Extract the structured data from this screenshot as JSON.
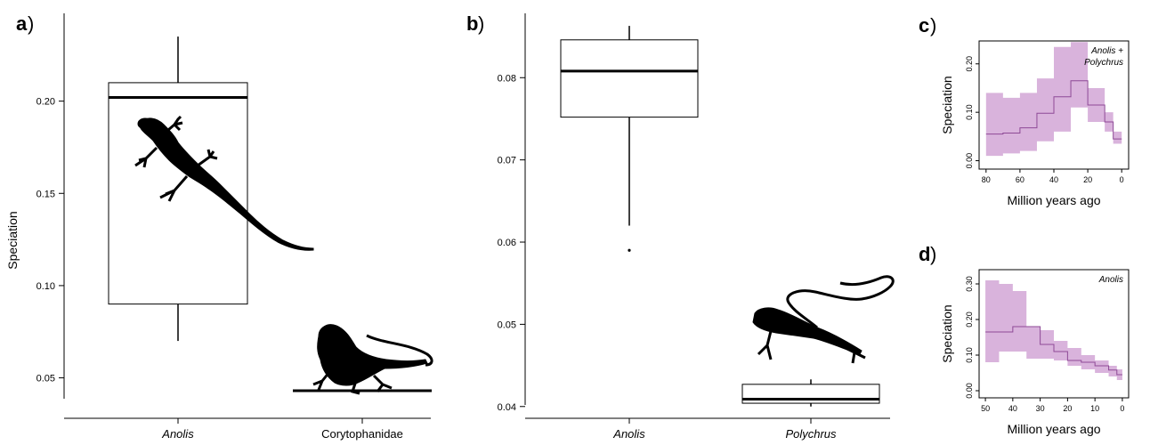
{
  "chart_data": [
    {
      "panel": "a",
      "type": "box",
      "ylabel": "Speciation",
      "ylim": [
        0.03,
        0.25
      ],
      "yticks": [
        "0.05",
        "0.10",
        "0.15",
        "0.20"
      ],
      "categories": [
        "Anolis",
        "Corytophanidae"
      ],
      "italic_categories": [
        true,
        false
      ],
      "boxes": [
        {
          "whisker_low": 0.07,
          "q1": 0.09,
          "median": 0.202,
          "q3": 0.21,
          "whisker_high": 0.235
        },
        {
          "whisker_low": 0.043,
          "q1": 0.043,
          "median": 0.043,
          "q3": 0.043,
          "whisker_high": 0.043
        }
      ],
      "silhouettes": [
        "anole-lizard",
        "basilisk-lizard"
      ]
    },
    {
      "panel": "b",
      "type": "box",
      "ylabel": "",
      "ylim": [
        0.039,
        0.0875
      ],
      "yticks": [
        "0.04",
        "0.05",
        "0.06",
        "0.07",
        "0.08"
      ],
      "categories": [
        "Anolis",
        "Polychrus"
      ],
      "italic_categories": [
        true,
        true
      ],
      "boxes": [
        {
          "whisker_low": 0.062,
          "q1": 0.0752,
          "median": 0.0808,
          "q3": 0.0846,
          "whisker_high": 0.0863,
          "outliers": [
            0.059
          ]
        },
        {
          "whisker_low": 0.04,
          "q1": 0.0404,
          "median": 0.0409,
          "q3": 0.0427,
          "whisker_high": 0.0433
        }
      ],
      "silhouettes": [
        "polychrus-lizard"
      ]
    },
    {
      "panel": "c",
      "type": "line",
      "annotation": [
        "Anolis +",
        "Polychrus"
      ],
      "xlabel": "Million years ago",
      "ylabel": "Speciation",
      "xlim": [
        82,
        -2
      ],
      "ylim": [
        -0.01,
        0.24
      ],
      "xticks": [
        "80",
        "60",
        "40",
        "20",
        "0"
      ],
      "yticks": [
        "0.00",
        "0.10",
        "0.20"
      ],
      "x": [
        80,
        70,
        60,
        50,
        40,
        30,
        20,
        10,
        5
      ],
      "y": [
        0.055,
        0.057,
        0.068,
        0.098,
        0.132,
        0.165,
        0.115,
        0.08,
        0.045
      ],
      "y_low": [
        0.01,
        0.015,
        0.02,
        0.04,
        0.06,
        0.11,
        0.08,
        0.06,
        0.035
      ],
      "y_high": [
        0.14,
        0.13,
        0.14,
        0.17,
        0.235,
        0.245,
        0.15,
        0.1,
        0.06
      ],
      "band_color": "#d9b3dc",
      "line_color": "#8e4a96"
    },
    {
      "panel": "d",
      "type": "line",
      "annotation": [
        "Anolis"
      ],
      "xlabel": "Million years ago",
      "ylabel": "Speciation",
      "xlim": [
        51,
        -1
      ],
      "ylim": [
        -0.01,
        0.33
      ],
      "xticks": [
        "50",
        "40",
        "30",
        "20",
        "10",
        "0"
      ],
      "yticks": [
        "0.00",
        "0.10",
        "0.20",
        "0.30"
      ],
      "x": [
        50,
        45,
        40,
        35,
        30,
        25,
        20,
        15,
        10,
        5,
        2
      ],
      "y": [
        0.165,
        0.165,
        0.18,
        0.18,
        0.13,
        0.11,
        0.085,
        0.08,
        0.07,
        0.058,
        0.045
      ],
      "y_low": [
        0.08,
        0.11,
        0.11,
        0.09,
        0.09,
        0.085,
        0.07,
        0.06,
        0.05,
        0.04,
        0.03
      ],
      "y_high": [
        0.31,
        0.3,
        0.28,
        0.18,
        0.17,
        0.14,
        0.12,
        0.1,
        0.085,
        0.07,
        0.06
      ],
      "band_color": "#d9b3dc",
      "line_color": "#8e4a96"
    }
  ],
  "colors": {
    "axis": "#000000",
    "silhouette": "#000000"
  }
}
